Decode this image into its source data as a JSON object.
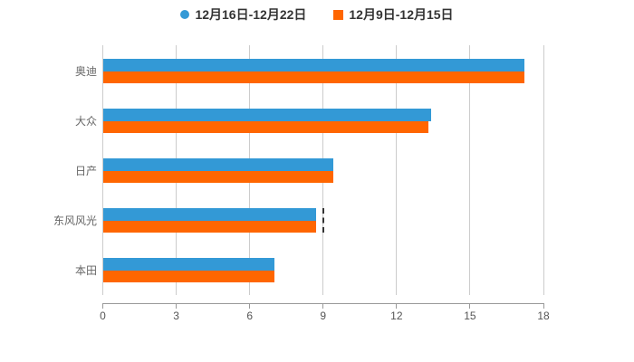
{
  "page": {
    "background": "#ffffff"
  },
  "legend": {
    "items": [
      {
        "label": "12月16日-12月22日",
        "marker": "circle",
        "color": "#3399d6"
      },
      {
        "label": "12月9日-12月15日",
        "marker": "square",
        "color": "#ff6600"
      }
    ],
    "text_color": "#333333"
  },
  "chart_data": {
    "type": "bar",
    "orientation": "horizontal",
    "title": "",
    "categories": [
      "奥迪",
      "大众",
      "日产",
      "东风风光",
      "本田"
    ],
    "series": [
      {
        "name": "12月16日-12月22日",
        "color": "#3399d6",
        "values": [
          17.2,
          13.4,
          9.4,
          8.7,
          7.0
        ]
      },
      {
        "name": "12月9日-12月15日",
        "color": "#ff6600",
        "values": [
          17.2,
          13.3,
          9.4,
          8.7,
          7.0
        ]
      }
    ],
    "xlim": [
      0,
      18
    ],
    "x_ticks": [
      0,
      3,
      6,
      9,
      12,
      15,
      18
    ],
    "grid": true,
    "legend_position": "top-center",
    "annotations": [
      {
        "type": "dashed-line",
        "x": 9,
        "category": "东风风光",
        "color": "#333333"
      }
    ],
    "colors": {
      "gridline": "#cccccc",
      "axis_line": "#999999",
      "tick_label": "#555555",
      "category_label": "#666666"
    }
  }
}
